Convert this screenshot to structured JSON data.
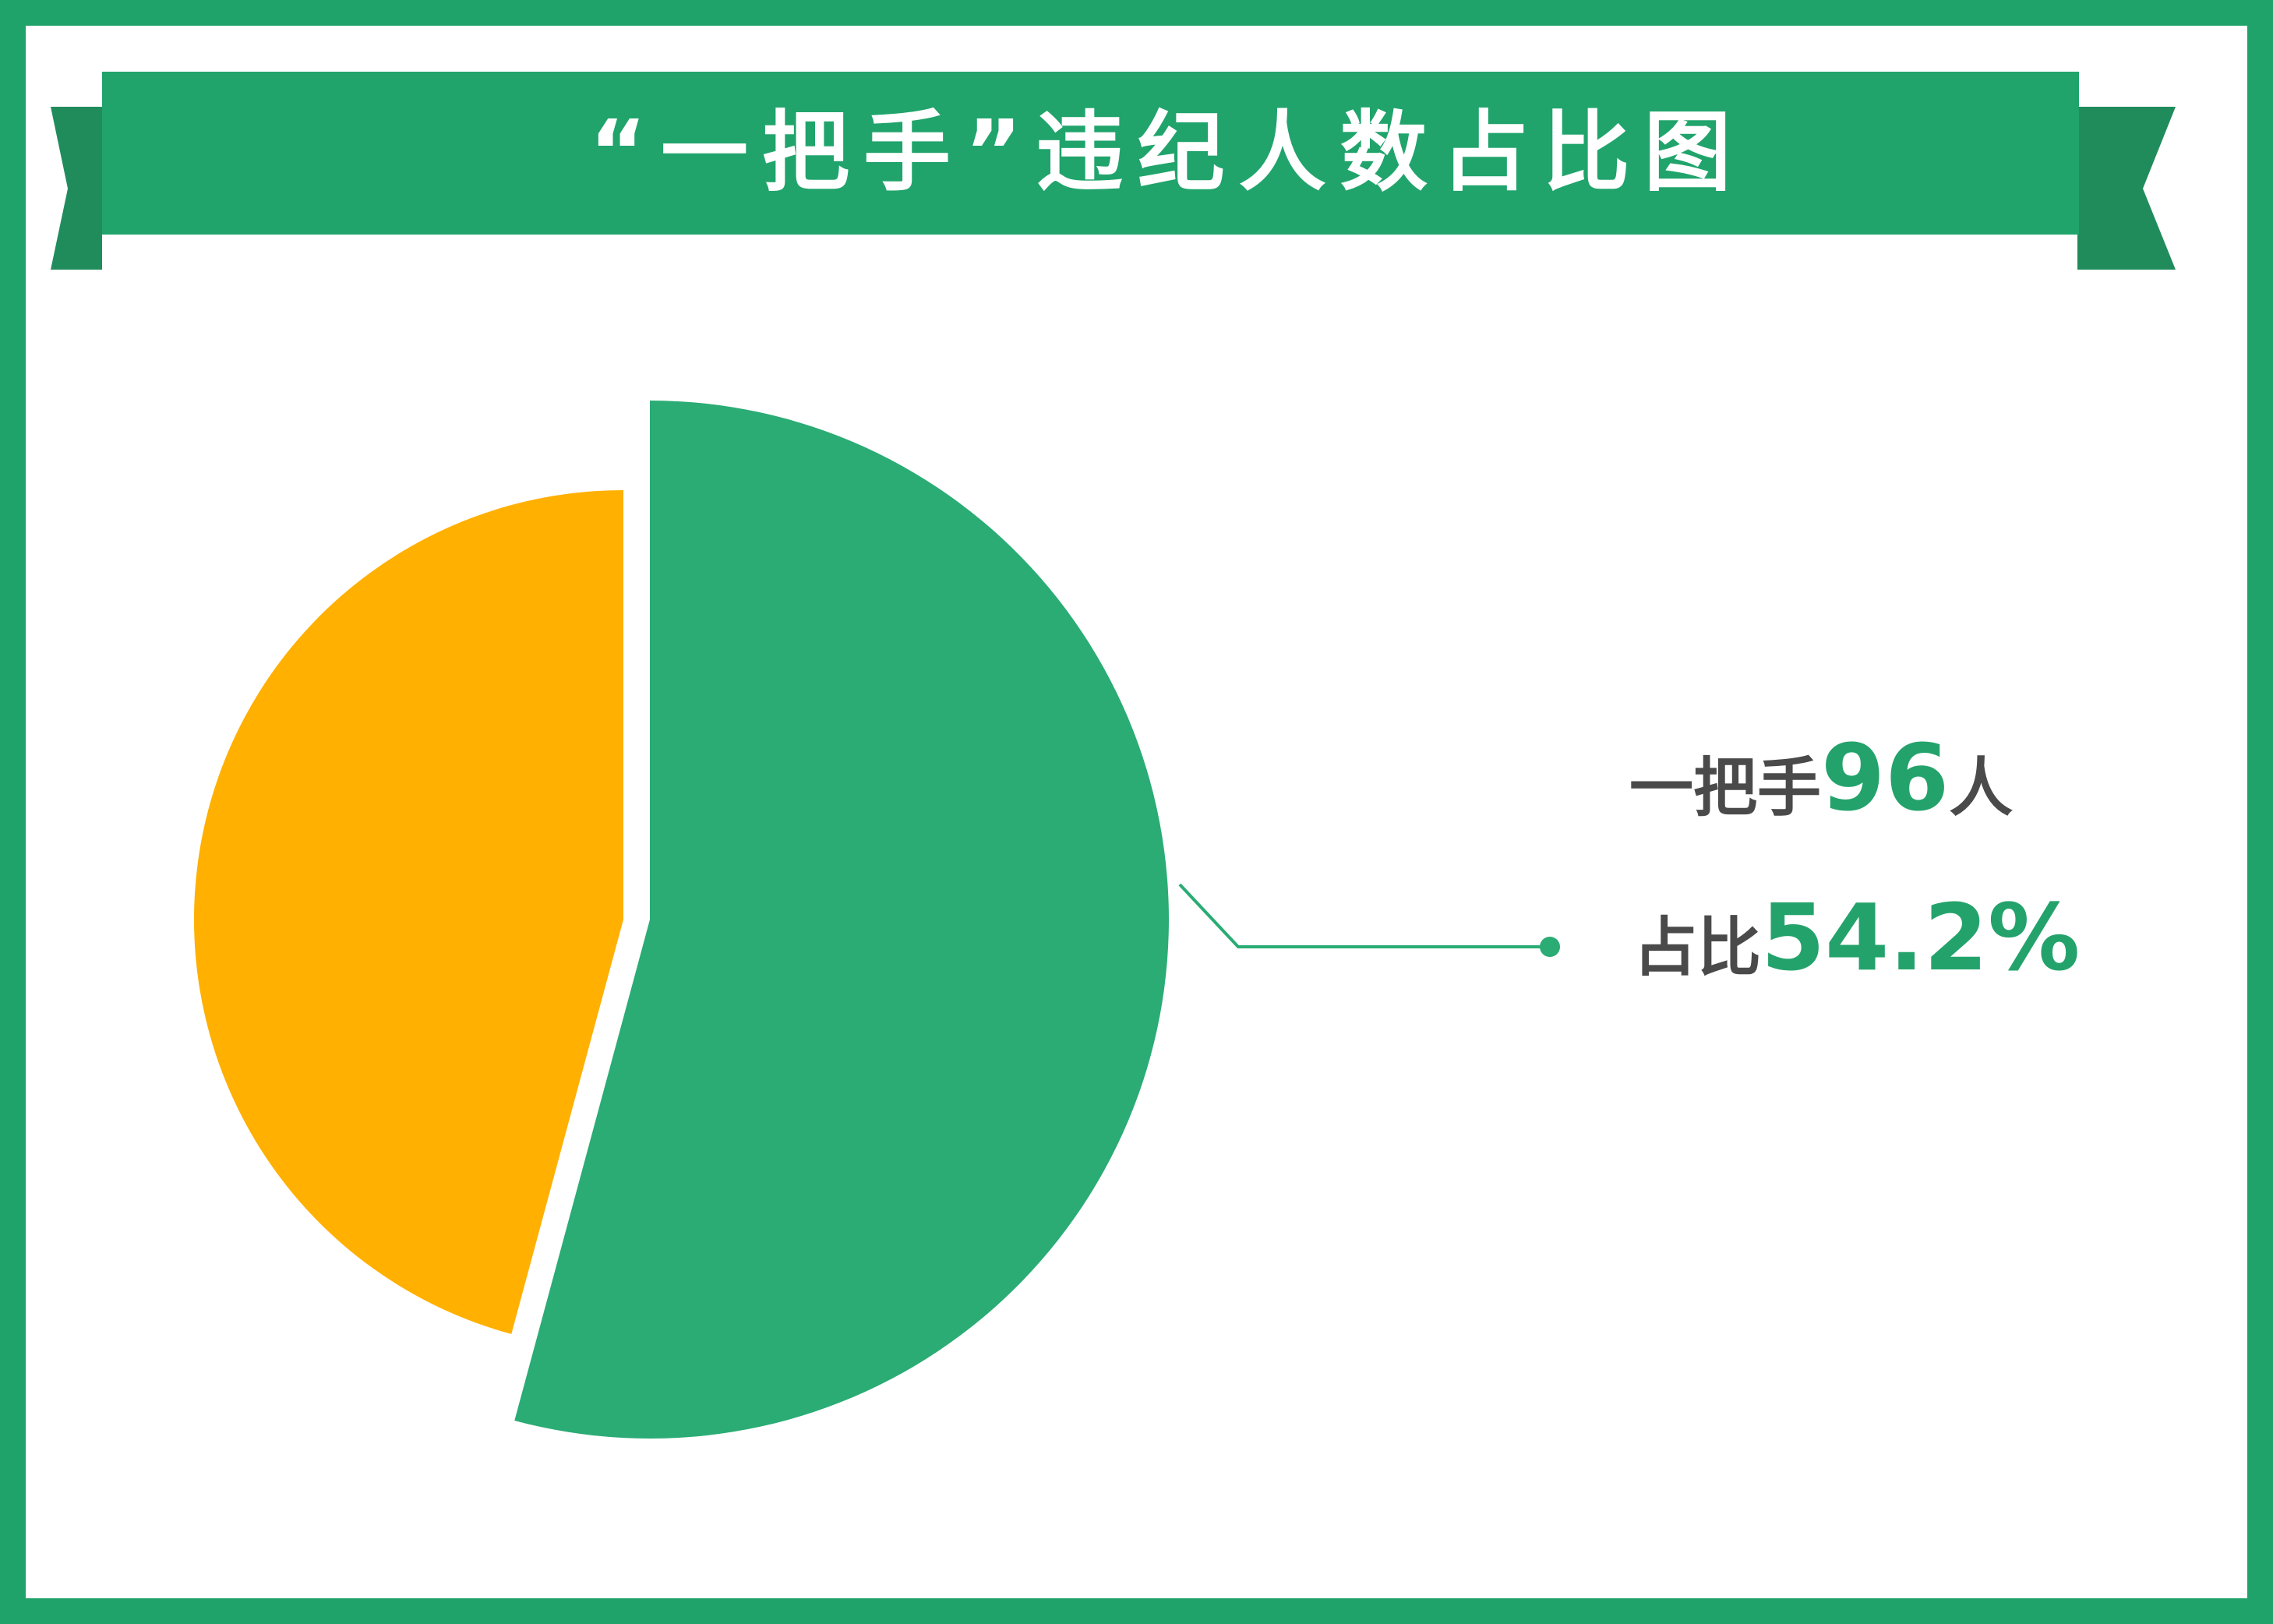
{
  "title": "“一把手”违纪人数占比图",
  "colors": {
    "frame": "#1fa36b",
    "banner": "#20a46c",
    "ribbon_tail": "#208c5c",
    "highlight": "#2aac74",
    "other": "#ffb000",
    "text": "#4a4a4a",
    "number": "#23a36b"
  },
  "chart_data": {
    "type": "pie",
    "title": "“一把手”违纪人数占比图",
    "slices": [
      {
        "label": "一把手",
        "value": 54.2,
        "count": 96,
        "color": "#2aac74",
        "exploded": true
      },
      {
        "label": "",
        "value": 45.8,
        "color": "#ffb000"
      }
    ],
    "callout": {
      "line1_prefix": "一把手",
      "line1_value": "96",
      "line1_suffix": "人",
      "line2_prefix": "占比",
      "line2_value": "54.2%"
    }
  }
}
